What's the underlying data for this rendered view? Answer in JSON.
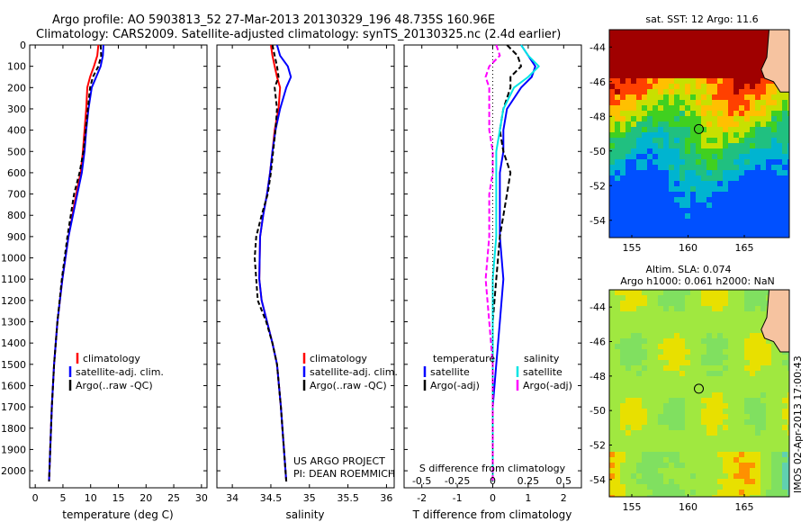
{
  "title_line1": "Argo profile: AO 5903813_52 27-Mar-2013 20130329_196 48.735S 160.96E",
  "title_line2": "Climatology: CARS2009. Satellite-adjusted climatology: synTS_20130325.nc (2.4d earlier)",
  "colors": {
    "climatology": "#ff0000",
    "satellite": "#0000ff",
    "argo": "#000000",
    "sal_satellite": "#00e5e5",
    "sal_argo": "#ff00ff"
  },
  "chart_data": [
    {
      "type": "line",
      "panel": "temperature",
      "xlabel": "temperature (deg C)",
      "ylabel": "",
      "xlim": [
        -1,
        31
      ],
      "ylim": [
        2080,
        0
      ],
      "xticks": [
        0,
        5,
        10,
        15,
        20,
        25,
        30
      ],
      "yticks": [
        0,
        100,
        200,
        300,
        400,
        500,
        600,
        700,
        800,
        900,
        1000,
        1100,
        1200,
        1300,
        1400,
        1500,
        1600,
        1700,
        1800,
        1900,
        2000
      ],
      "legend": [
        "climatology",
        "satellite-adj. clim.",
        "Argo(..raw -QC)"
      ],
      "legend_location": "lower-right",
      "series": [
        {
          "name": "climatology",
          "role": "climatology",
          "x": [
            11.4,
            11.2,
            10.6,
            9.9,
            9.4,
            9.2,
            8.9,
            8.6,
            8.2,
            7.4,
            6.0,
            4.9,
            4.0,
            3.4,
            3.0,
            2.7,
            2.5
          ],
          "y": [
            0,
            50,
            100,
            150,
            200,
            300,
            400,
            500,
            600,
            700,
            900,
            1100,
            1300,
            1500,
            1700,
            1900,
            2050
          ]
        },
        {
          "name": "satellite-adj. clim.",
          "role": "satellite",
          "x": [
            12.3,
            12.2,
            11.8,
            11.0,
            10.2,
            9.6,
            9.2,
            8.9,
            8.4,
            7.6,
            6.0,
            4.9,
            4.0,
            3.4,
            3.0,
            2.7,
            2.5
          ],
          "y": [
            0,
            50,
            100,
            150,
            200,
            300,
            400,
            500,
            600,
            700,
            900,
            1100,
            1300,
            1500,
            1700,
            1900,
            2050
          ]
        },
        {
          "name": "Argo(..raw -QC)",
          "role": "argo",
          "x": [
            11.8,
            11.9,
            11.4,
            10.4,
            9.9,
            9.5,
            9.1,
            8.7,
            8.0,
            7.0,
            5.8,
            4.8,
            4.0,
            3.4,
            3.0,
            2.7,
            2.5
          ],
          "y": [
            0,
            50,
            100,
            150,
            200,
            300,
            400,
            500,
            600,
            700,
            900,
            1100,
            1300,
            1500,
            1700,
            1900,
            2050
          ]
        }
      ]
    },
    {
      "type": "line",
      "panel": "salinity",
      "xlabel": "salinity",
      "ylabel": "",
      "xlim": [
        33.8,
        36.1
      ],
      "ylim": [
        2080,
        0
      ],
      "xticks": [
        34,
        34.5,
        35,
        35.5,
        36
      ],
      "legend": [
        "climatology",
        "satellite-adj. clim.",
        "Argo(..raw -QC)"
      ],
      "legend_location": "lower-right",
      "annotation": [
        "US ARGO PROJECT",
        "PI: DEAN ROEMMICH"
      ],
      "series": [
        {
          "name": "climatology",
          "role": "climatology",
          "x": [
            34.5,
            34.52,
            34.55,
            34.58,
            34.62,
            34.6,
            34.55,
            34.52,
            34.49,
            34.45,
            34.4,
            34.36,
            34.35,
            34.38,
            34.45,
            34.52,
            34.58,
            34.63,
            34.67,
            34.7
          ],
          "y": [
            0,
            50,
            100,
            150,
            200,
            300,
            400,
            500,
            600,
            700,
            800,
            900,
            1100,
            1200,
            1300,
            1400,
            1500,
            1700,
            1900,
            2050
          ]
        },
        {
          "name": "satellite-adj. clim.",
          "role": "satellite",
          "x": [
            34.58,
            34.62,
            34.72,
            34.76,
            34.7,
            34.62,
            34.56,
            34.52,
            34.49,
            34.45,
            34.4,
            34.36,
            34.35,
            34.38,
            34.45,
            34.52,
            34.58,
            34.63,
            34.67,
            34.7
          ],
          "y": [
            0,
            50,
            100,
            150,
            200,
            300,
            400,
            500,
            600,
            700,
            800,
            900,
            1100,
            1200,
            1300,
            1400,
            1500,
            1700,
            1900,
            2050
          ]
        },
        {
          "name": "Argo(..raw -QC)",
          "role": "argo",
          "x": [
            34.52,
            34.55,
            34.58,
            34.6,
            34.55,
            34.58,
            34.56,
            34.53,
            34.5,
            34.46,
            34.38,
            34.31,
            34.29,
            34.33,
            34.44,
            34.52,
            34.58,
            34.63,
            34.67,
            34.7
          ],
          "y": [
            0,
            50,
            100,
            150,
            200,
            300,
            400,
            500,
            600,
            700,
            800,
            900,
            1000,
            1200,
            1300,
            1400,
            1500,
            1700,
            1900,
            2050
          ]
        }
      ]
    },
    {
      "type": "line",
      "panel": "difference",
      "xlabel": "T difference from climatology",
      "xlabel2": "S difference from climatology",
      "xlim": [
        -2.5,
        2.5
      ],
      "ylim": [
        2080,
        0
      ],
      "xticks": [
        -2,
        -1,
        0,
        1,
        2
      ],
      "xticks_top": [
        "-0.5",
        "-0.25",
        "0",
        "0.25",
        "0.5"
      ],
      "legend_temperature": {
        "title": "temperature",
        "entries": [
          "satellite",
          "Argo(-adj)"
        ]
      },
      "legend_salinity": {
        "title": "salinity",
        "entries": [
          "satellite",
          "Argo(-adj)"
        ]
      },
      "series": [
        {
          "name": "satellite",
          "role": "t_satellite",
          "x": [
            0.8,
            1.0,
            1.2,
            1.1,
            0.8,
            0.4,
            0.3,
            0.3,
            0.2,
            0.2,
            0.2,
            0.3,
            0.2,
            0.1,
            0.0,
            0.0,
            0.0
          ],
          "y": [
            0,
            50,
            100,
            150,
            200,
            300,
            400,
            500,
            600,
            700,
            900,
            1100,
            1300,
            1500,
            1700,
            1900,
            2050
          ]
        },
        {
          "name": "Argo(-adj)",
          "role": "t_argo",
          "x": [
            0.4,
            0.7,
            0.8,
            0.5,
            0.5,
            0.3,
            0.2,
            0.3,
            0.5,
            0.4,
            0.2,
            0.1,
            0.0,
            0.0,
            0.0,
            0.0,
            0.0
          ],
          "y": [
            0,
            50,
            100,
            150,
            200,
            300,
            400,
            500,
            600,
            700,
            900,
            1100,
            1300,
            1500,
            1700,
            1900,
            2050
          ]
        },
        {
          "name": "satellite",
          "role": "s_satellite",
          "x": [
            0.8,
            1.0,
            1.3,
            1.0,
            0.6,
            0.3,
            0.2,
            0.1,
            0.1,
            0.1,
            0.1,
            0.0,
            0.0,
            0.0,
            0.0,
            0.0,
            0.0
          ],
          "y": [
            0,
            50,
            100,
            150,
            200,
            300,
            400,
            500,
            600,
            700,
            900,
            1100,
            1300,
            1500,
            1700,
            1900,
            2050
          ]
        },
        {
          "name": "Argo(-adj)",
          "role": "s_argo",
          "x": [
            0.1,
            0.2,
            -0.1,
            -0.2,
            -0.1,
            -0.1,
            -0.1,
            0.0,
            0.0,
            -0.1,
            -0.1,
            -0.2,
            -0.1,
            0.0,
            0.0,
            0.0,
            0.0
          ],
          "y": [
            0,
            50,
            100,
            150,
            200,
            300,
            400,
            500,
            600,
            700,
            900,
            1100,
            1300,
            1500,
            1700,
            1900,
            2050
          ]
        }
      ]
    },
    {
      "type": "heatmap",
      "panel": "sst_map",
      "title": "sat. SST: 12 Argo: 11.6",
      "xlim": [
        153,
        169
      ],
      "ylim": [
        -55,
        -43
      ],
      "xticks": [
        155,
        160,
        165
      ],
      "yticks": [
        -44,
        -46,
        -48,
        -50,
        -52,
        -54
      ],
      "profile_marker": {
        "lon": 160.96,
        "lat": -48.735
      }
    },
    {
      "type": "heatmap",
      "panel": "sla_map",
      "title_line1": "Altim. SLA: 0.074",
      "title_line2": "Argo h1000: 0.061 h2000: NaN",
      "xlim": [
        153,
        169
      ],
      "ylim": [
        -55,
        -43
      ],
      "xticks": [
        155,
        160,
        165
      ],
      "yticks": [
        -44,
        -46,
        -48,
        -50,
        -52,
        -54
      ],
      "profile_marker": {
        "lon": 160.96,
        "lat": -48.735
      }
    }
  ],
  "side_note": "IMOS 02-Apr-2013 17:00:43"
}
